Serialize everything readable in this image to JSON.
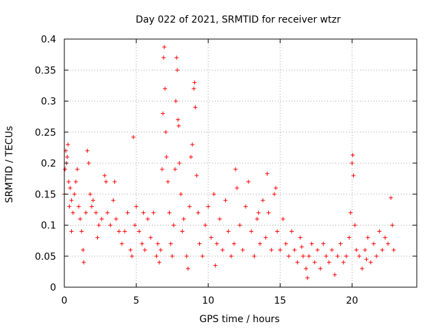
{
  "chart_data": {
    "type": "scatter",
    "title": "Day 022 of 2021, SRMTID for receiver wtzr",
    "xlabel": "GPS time / hours",
    "ylabel": "SRMTID / TECUs",
    "xlim": [
      0,
      24.5
    ],
    "ylim": [
      0,
      0.4
    ],
    "xticks": [
      0,
      5,
      10,
      15,
      20
    ],
    "xtick_labels": [
      "0",
      "5",
      "10",
      "15",
      "20"
    ],
    "yticks": [
      0,
      0.05,
      0.1,
      0.15,
      0.2,
      0.25,
      0.3,
      0.35,
      0.4
    ],
    "ytick_labels": [
      "0",
      "0.05",
      "0.1",
      "0.15",
      "0.2",
      "0.25",
      "0.3",
      "0.35",
      "0.4"
    ],
    "grid": true,
    "marker": "plus",
    "color": "#ff0000",
    "series": [
      {
        "name": "SRMTID",
        "points": [
          [
            0.0,
            0.15
          ],
          [
            0.05,
            0.19
          ],
          [
            0.1,
            0.22
          ],
          [
            0.15,
            0.2
          ],
          [
            0.2,
            0.21
          ],
          [
            0.25,
            0.23
          ],
          [
            0.3,
            0.17
          ],
          [
            0.35,
            0.13
          ],
          [
            0.4,
            0.16
          ],
          [
            0.5,
            0.14
          ],
          [
            0.6,
            0.12
          ],
          [
            0.7,
            0.15
          ],
          [
            0.8,
            0.17
          ],
          [
            0.9,
            0.19
          ],
          [
            1.0,
            0.13
          ],
          [
            1.1,
            0.11
          ],
          [
            1.2,
            0.09
          ],
          [
            1.3,
            0.06
          ],
          [
            1.35,
            0.04
          ],
          [
            1.5,
            0.12
          ],
          [
            1.6,
            0.22
          ],
          [
            1.7,
            0.2
          ],
          [
            1.8,
            0.15
          ],
          [
            1.9,
            0.13
          ],
          [
            2.0,
            0.14
          ],
          [
            2.2,
            0.12
          ],
          [
            2.4,
            0.1
          ],
          [
            2.6,
            0.11
          ],
          [
            2.8,
            0.18
          ],
          [
            2.9,
            0.17
          ],
          [
            3.0,
            0.12
          ],
          [
            3.2,
            0.1
          ],
          [
            3.4,
            0.14
          ],
          [
            3.5,
            0.17
          ],
          [
            3.6,
            0.11
          ],
          [
            3.8,
            0.09
          ],
          [
            4.0,
            0.07
          ],
          [
            4.2,
            0.09
          ],
          [
            4.4,
            0.12
          ],
          [
            4.6,
            0.06
          ],
          [
            4.7,
            0.05
          ],
          [
            4.8,
            0.242
          ],
          [
            4.9,
            0.1
          ],
          [
            5.0,
            0.13
          ],
          [
            5.2,
            0.09
          ],
          [
            5.4,
            0.07
          ],
          [
            5.6,
            0.06
          ],
          [
            5.8,
            0.11
          ],
          [
            6.0,
            0.08
          ],
          [
            6.2,
            0.12
          ],
          [
            6.4,
            0.05
          ],
          [
            6.5,
            0.07
          ],
          [
            6.6,
            0.04
          ],
          [
            6.7,
            0.06
          ],
          [
            6.8,
            0.19
          ],
          [
            6.85,
            0.28
          ],
          [
            6.9,
            0.37
          ],
          [
            6.95,
            0.387
          ],
          [
            7.0,
            0.32
          ],
          [
            7.05,
            0.25
          ],
          [
            7.1,
            0.21
          ],
          [
            7.2,
            0.17
          ],
          [
            7.3,
            0.12
          ],
          [
            7.4,
            0.07
          ],
          [
            7.5,
            0.05
          ],
          [
            7.6,
            0.1
          ],
          [
            7.7,
            0.19
          ],
          [
            7.75,
            0.3
          ],
          [
            7.8,
            0.37
          ],
          [
            7.85,
            0.35
          ],
          [
            7.9,
            0.27
          ],
          [
            7.95,
            0.26
          ],
          [
            8.0,
            0.2
          ],
          [
            8.1,
            0.15
          ],
          [
            8.2,
            0.09
          ],
          [
            8.3,
            0.11
          ],
          [
            8.5,
            0.05
          ],
          [
            8.6,
            0.03
          ],
          [
            8.7,
            0.13
          ],
          [
            8.8,
            0.21
          ],
          [
            8.9,
            0.23
          ],
          [
            9.0,
            0.32
          ],
          [
            9.05,
            0.33
          ],
          [
            9.1,
            0.29
          ],
          [
            9.2,
            0.18
          ],
          [
            9.3,
            0.12
          ],
          [
            9.4,
            0.07
          ],
          [
            9.6,
            0.05
          ],
          [
            9.8,
            0.1
          ],
          [
            10.0,
            0.13
          ],
          [
            10.2,
            0.08
          ],
          [
            10.4,
            0.15
          ],
          [
            10.6,
            0.07
          ],
          [
            10.8,
            0.11
          ],
          [
            11.0,
            0.06
          ],
          [
            11.2,
            0.14
          ],
          [
            11.4,
            0.09
          ],
          [
            11.6,
            0.05
          ],
          [
            11.8,
            0.07
          ],
          [
            11.9,
            0.19
          ],
          [
            12.0,
            0.16
          ],
          [
            12.2,
            0.1
          ],
          [
            12.4,
            0.06
          ],
          [
            12.6,
            0.13
          ],
          [
            12.8,
            0.17
          ],
          [
            13.0,
            0.09
          ],
          [
            13.2,
            0.05
          ],
          [
            13.4,
            0.11
          ],
          [
            13.6,
            0.07
          ],
          [
            13.8,
            0.14
          ],
          [
            14.0,
            0.08
          ],
          [
            14.1,
            0.183
          ],
          [
            14.2,
            0.12
          ],
          [
            14.4,
            0.06
          ],
          [
            14.6,
            0.15
          ],
          [
            14.7,
            0.16
          ],
          [
            14.8,
            0.09
          ],
          [
            15.0,
            0.06
          ],
          [
            15.2,
            0.11
          ],
          [
            15.4,
            0.07
          ],
          [
            15.6,
            0.05
          ],
          [
            15.8,
            0.09
          ],
          [
            16.0,
            0.06
          ],
          [
            16.2,
            0.04
          ],
          [
            16.4,
            0.08
          ],
          [
            16.6,
            0.05
          ],
          [
            16.8,
            0.03
          ],
          [
            16.9,
            0.015
          ],
          [
            17.0,
            0.05
          ],
          [
            17.2,
            0.07
          ],
          [
            17.4,
            0.04
          ],
          [
            17.6,
            0.06
          ],
          [
            17.8,
            0.03
          ],
          [
            18.0,
            0.07
          ],
          [
            18.2,
            0.05
          ],
          [
            18.4,
            0.04
          ],
          [
            18.6,
            0.06
          ],
          [
            18.8,
            0.02
          ],
          [
            19.0,
            0.05
          ],
          [
            19.2,
            0.07
          ],
          [
            19.4,
            0.04
          ],
          [
            19.6,
            0.05
          ],
          [
            19.8,
            0.08
          ],
          [
            19.9,
            0.12
          ],
          [
            20.0,
            0.2
          ],
          [
            20.05,
            0.213
          ],
          [
            20.1,
            0.18
          ],
          [
            20.2,
            0.1
          ],
          [
            20.3,
            0.06
          ],
          [
            20.5,
            0.05
          ],
          [
            20.7,
            0.03
          ],
          [
            20.9,
            0.06
          ],
          [
            21.1,
            0.08
          ],
          [
            21.3,
            0.04
          ],
          [
            21.5,
            0.07
          ],
          [
            21.7,
            0.05
          ],
          [
            21.9,
            0.09
          ],
          [
            22.1,
            0.06
          ],
          [
            22.3,
            0.08
          ],
          [
            22.5,
            0.07
          ],
          [
            22.7,
            0.144
          ],
          [
            22.8,
            0.1
          ],
          [
            22.9,
            0.06
          ],
          [
            0.5,
            0.09
          ],
          [
            2.3,
            0.08
          ],
          [
            5.5,
            0.12
          ],
          [
            10.5,
            0.035
          ],
          [
            13.5,
            0.12
          ],
          [
            16.5,
            0.065
          ],
          [
            21.0,
            0.045
          ]
        ]
      }
    ]
  }
}
